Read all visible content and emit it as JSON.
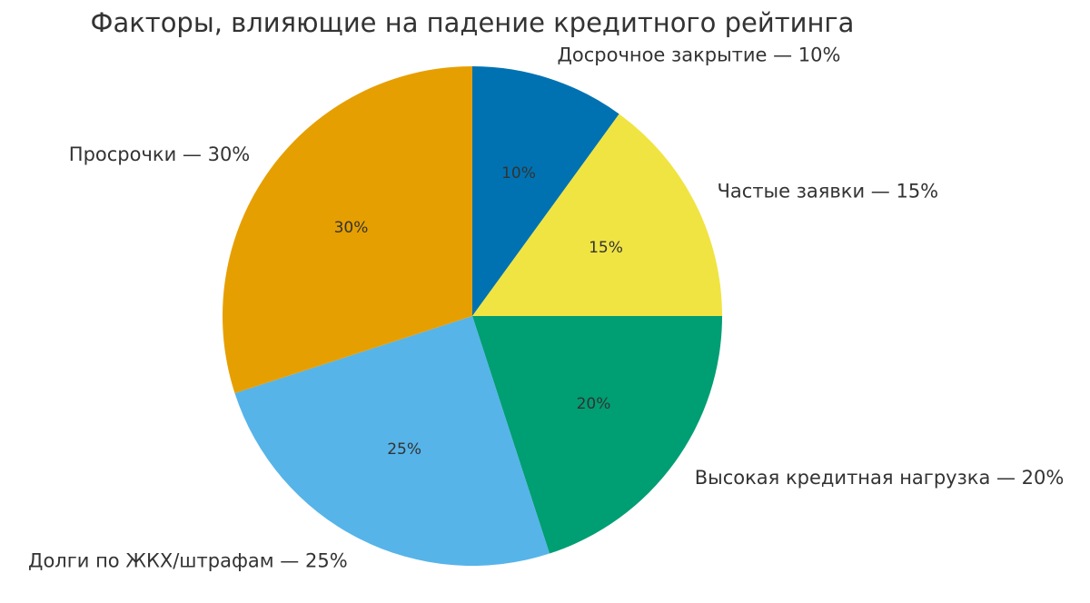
{
  "chart_data": {
    "type": "pie",
    "title": "Факторы, влияющие на падение кредитного рейтинга",
    "start_angle_deg": 90,
    "direction": "clockwise",
    "slices": [
      {
        "label": "Досрочное закрытие — 10%",
        "value": 10,
        "pct_label": "10%",
        "color": "#0072B2"
      },
      {
        "label": "Частые заявки — 15%",
        "value": 15,
        "pct_label": "15%",
        "color": "#F0E442"
      },
      {
        "label": "Высокая кредитная нагрузка — 20%",
        "value": 20,
        "pct_label": "20%",
        "color": "#009E73"
      },
      {
        "label": "Долги по ЖКХ/штрафам — 25%",
        "value": 25,
        "pct_label": "25%",
        "color": "#56B4E9"
      },
      {
        "label": "Просрочки — 30%",
        "value": 30,
        "pct_label": "30%",
        "color": "#E69F00"
      }
    ]
  }
}
